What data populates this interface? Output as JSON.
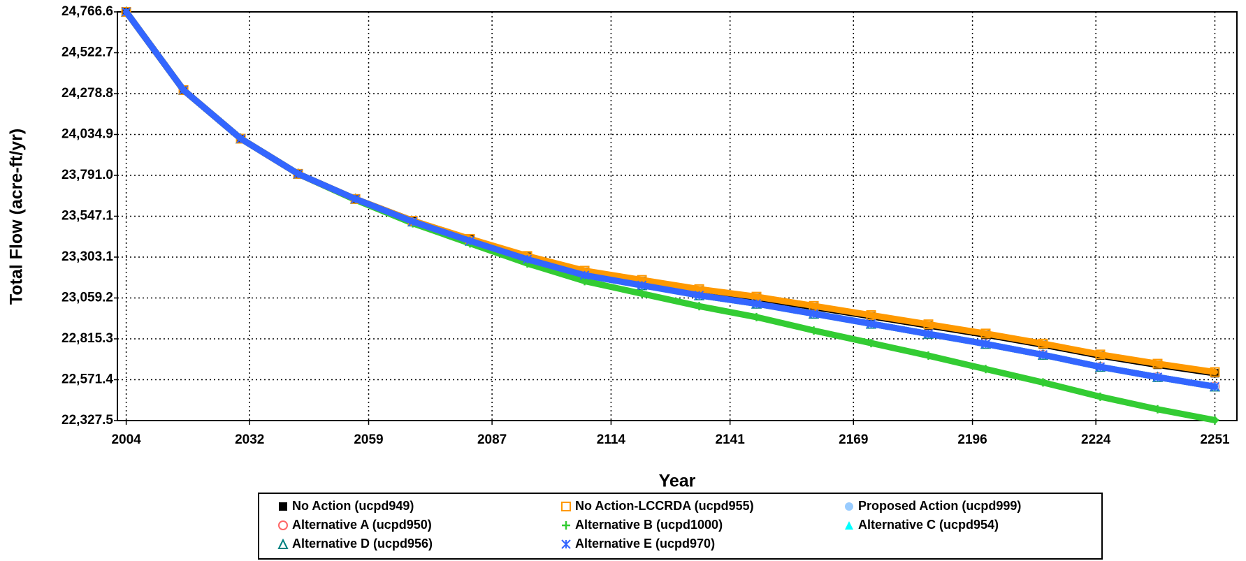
{
  "chart_data": {
    "type": "line",
    "x_label": "Year",
    "y_label": "Total Flow (acre-ft/yr)",
    "x": [
      2004,
      2017,
      2030,
      2043,
      2056,
      2069,
      2082,
      2095,
      2108,
      2121,
      2134,
      2147,
      2160,
      2173,
      2186,
      2199,
      2212,
      2225,
      2238,
      2251
    ],
    "xlim": [
      2002,
      2256
    ],
    "xticks": [
      2004,
      2032,
      2059,
      2087,
      2114,
      2141,
      2169,
      2196,
      2224,
      2251
    ],
    "ylim": [
      22327.5,
      24766.6
    ],
    "yticks": [
      {
        "value": 22327.5,
        "label": "22,327.5"
      },
      {
        "value": 22571.4,
        "label": "22,571.4"
      },
      {
        "value": 22815.3,
        "label": "22,815.3"
      },
      {
        "value": 23059.2,
        "label": "23,059.2"
      },
      {
        "value": 23303.1,
        "label": "23,303.1"
      },
      {
        "value": 23547.1,
        "label": "23,547.1"
      },
      {
        "value": 23791.0,
        "label": "23,791.0"
      },
      {
        "value": 24034.9,
        "label": "24,034.9"
      },
      {
        "value": 24278.8,
        "label": "24,278.8"
      },
      {
        "value": 24522.7,
        "label": "24,522.7"
      },
      {
        "value": 24766.6,
        "label": "24,766.6"
      }
    ],
    "grid": true,
    "legend": "bottom",
    "series": [
      {
        "name": "No Action (ucpd949)",
        "color": "#000000",
        "marker": "square-filled",
        "values": [
          24766.6,
          24300,
          24010,
          23800,
          23650,
          23520,
          23410,
          23305,
          23215,
          23160,
          23105,
          23060,
          23005,
          22950,
          22895,
          22840,
          22780,
          22715,
          22660,
          22610
        ]
      },
      {
        "name": "No Action-LCCRDA (ucpd955)",
        "color": "#ff9900",
        "marker": "square-open",
        "values": [
          24766.6,
          24300,
          24010,
          23800,
          23650,
          23520,
          23412,
          23310,
          23222,
          23167,
          23112,
          23067,
          23012,
          22957,
          22902,
          22847,
          22787,
          22722,
          22667,
          22617
        ]
      },
      {
        "name": "Proposed Action (ucpd999)",
        "color": "#99ccff",
        "marker": "circle-filled",
        "values": [
          24766.6,
          24300,
          24010,
          23800,
          23650,
          23515,
          23400,
          23290,
          23195,
          23135,
          23075,
          23025,
          22965,
          22905,
          22845,
          22785,
          22720,
          22648,
          22587,
          22530
        ]
      },
      {
        "name": "Alternative A (ucpd950)",
        "color": "#ff6666",
        "marker": "circle-open",
        "values": [
          24766.6,
          24300,
          24010,
          23800,
          23650,
          23515,
          23400,
          23290,
          23195,
          23135,
          23075,
          23025,
          22965,
          22905,
          22845,
          22785,
          22720,
          22648,
          22587,
          22530
        ]
      },
      {
        "name": "Alternative B (ucpd1000)",
        "color": "#33cc33",
        "marker": "plus",
        "values": [
          24766.6,
          24300,
          24010,
          23800,
          23645,
          23505,
          23385,
          23265,
          23160,
          23085,
          23010,
          22945,
          22865,
          22790,
          22715,
          22635,
          22555,
          22470,
          22395,
          22330
        ]
      },
      {
        "name": "Alternative C (ucpd954)",
        "color": "#00ffff",
        "marker": "triangle-filled",
        "values": [
          24766.6,
          24300,
          24010,
          23800,
          23650,
          23515,
          23400,
          23290,
          23195,
          23135,
          23075,
          23025,
          22965,
          22905,
          22845,
          22785,
          22720,
          22648,
          22587,
          22530
        ]
      },
      {
        "name": "Alternative D (ucpd956)",
        "color": "#008080",
        "marker": "triangle-open",
        "values": [
          24766.6,
          24300,
          24010,
          23800,
          23650,
          23515,
          23400,
          23290,
          23195,
          23135,
          23075,
          23025,
          22965,
          22905,
          22845,
          22785,
          22720,
          22648,
          22587,
          22530
        ]
      },
      {
        "name": "Alternative E (ucpd970)",
        "color": "#3366ff",
        "marker": "asterisk",
        "values": [
          24766.6,
          24300,
          24010,
          23800,
          23650,
          23515,
          23400,
          23290,
          23195,
          23135,
          23075,
          23025,
          22965,
          22905,
          22845,
          22785,
          22720,
          22648,
          22587,
          22530
        ]
      }
    ]
  }
}
